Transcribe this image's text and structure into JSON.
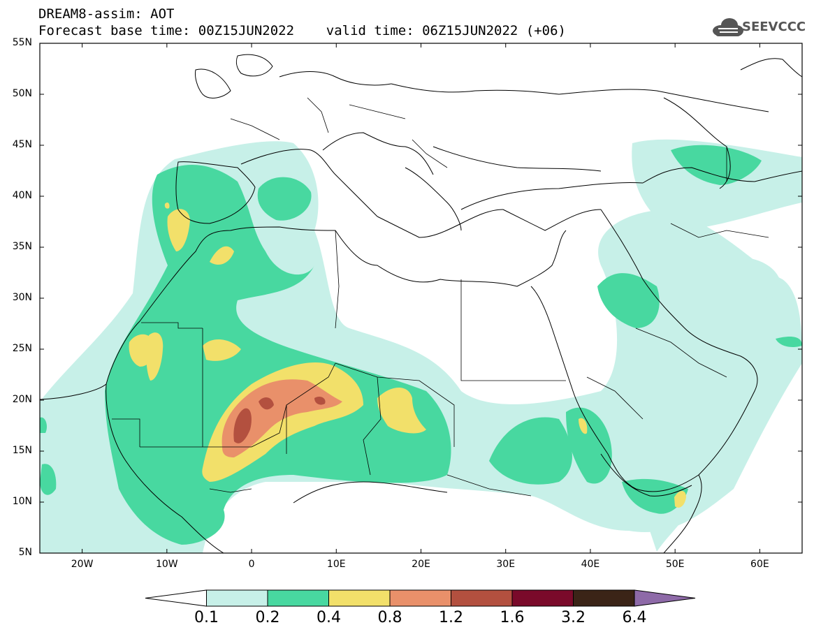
{
  "header": {
    "title_line1": "DREAM8-assim: AOT",
    "title_line2": "Forecast base time: 00Z15JUN2022    valid time: 06Z15JUN2022 (+06)",
    "logo_text": "SEEVCCC"
  },
  "map": {
    "lat_labels": [
      "55N",
      "50N",
      "45N",
      "40N",
      "35N",
      "30N",
      "25N",
      "20N",
      "15N",
      "10N",
      "5N"
    ],
    "lon_labels": [
      "20W",
      "10W",
      "0",
      "10E",
      "20E",
      "30E",
      "40E",
      "50E",
      "60E"
    ],
    "lon_range": [
      -25,
      65
    ],
    "lat_range": [
      5,
      55
    ]
  },
  "colorbar": {
    "labels": [
      "0.1",
      "0.2",
      "0.4",
      "0.8",
      "1.2",
      "1.6",
      "3.2",
      "6.4"
    ],
    "colors": [
      "#ffffff",
      "#c7f0e8",
      "#48d8a0",
      "#f2e06a",
      "#e9906a",
      "#b3503f",
      "#7a0a2a",
      "#3b2417",
      "#8e6aa8"
    ]
  },
  "colors": {
    "level_0_1": "#c7f0e8",
    "level_0_2": "#48d8a0",
    "level_0_4": "#f2e06a",
    "level_0_8": "#e9906a",
    "level_1_2": "#b3503f",
    "border": "#000000"
  }
}
